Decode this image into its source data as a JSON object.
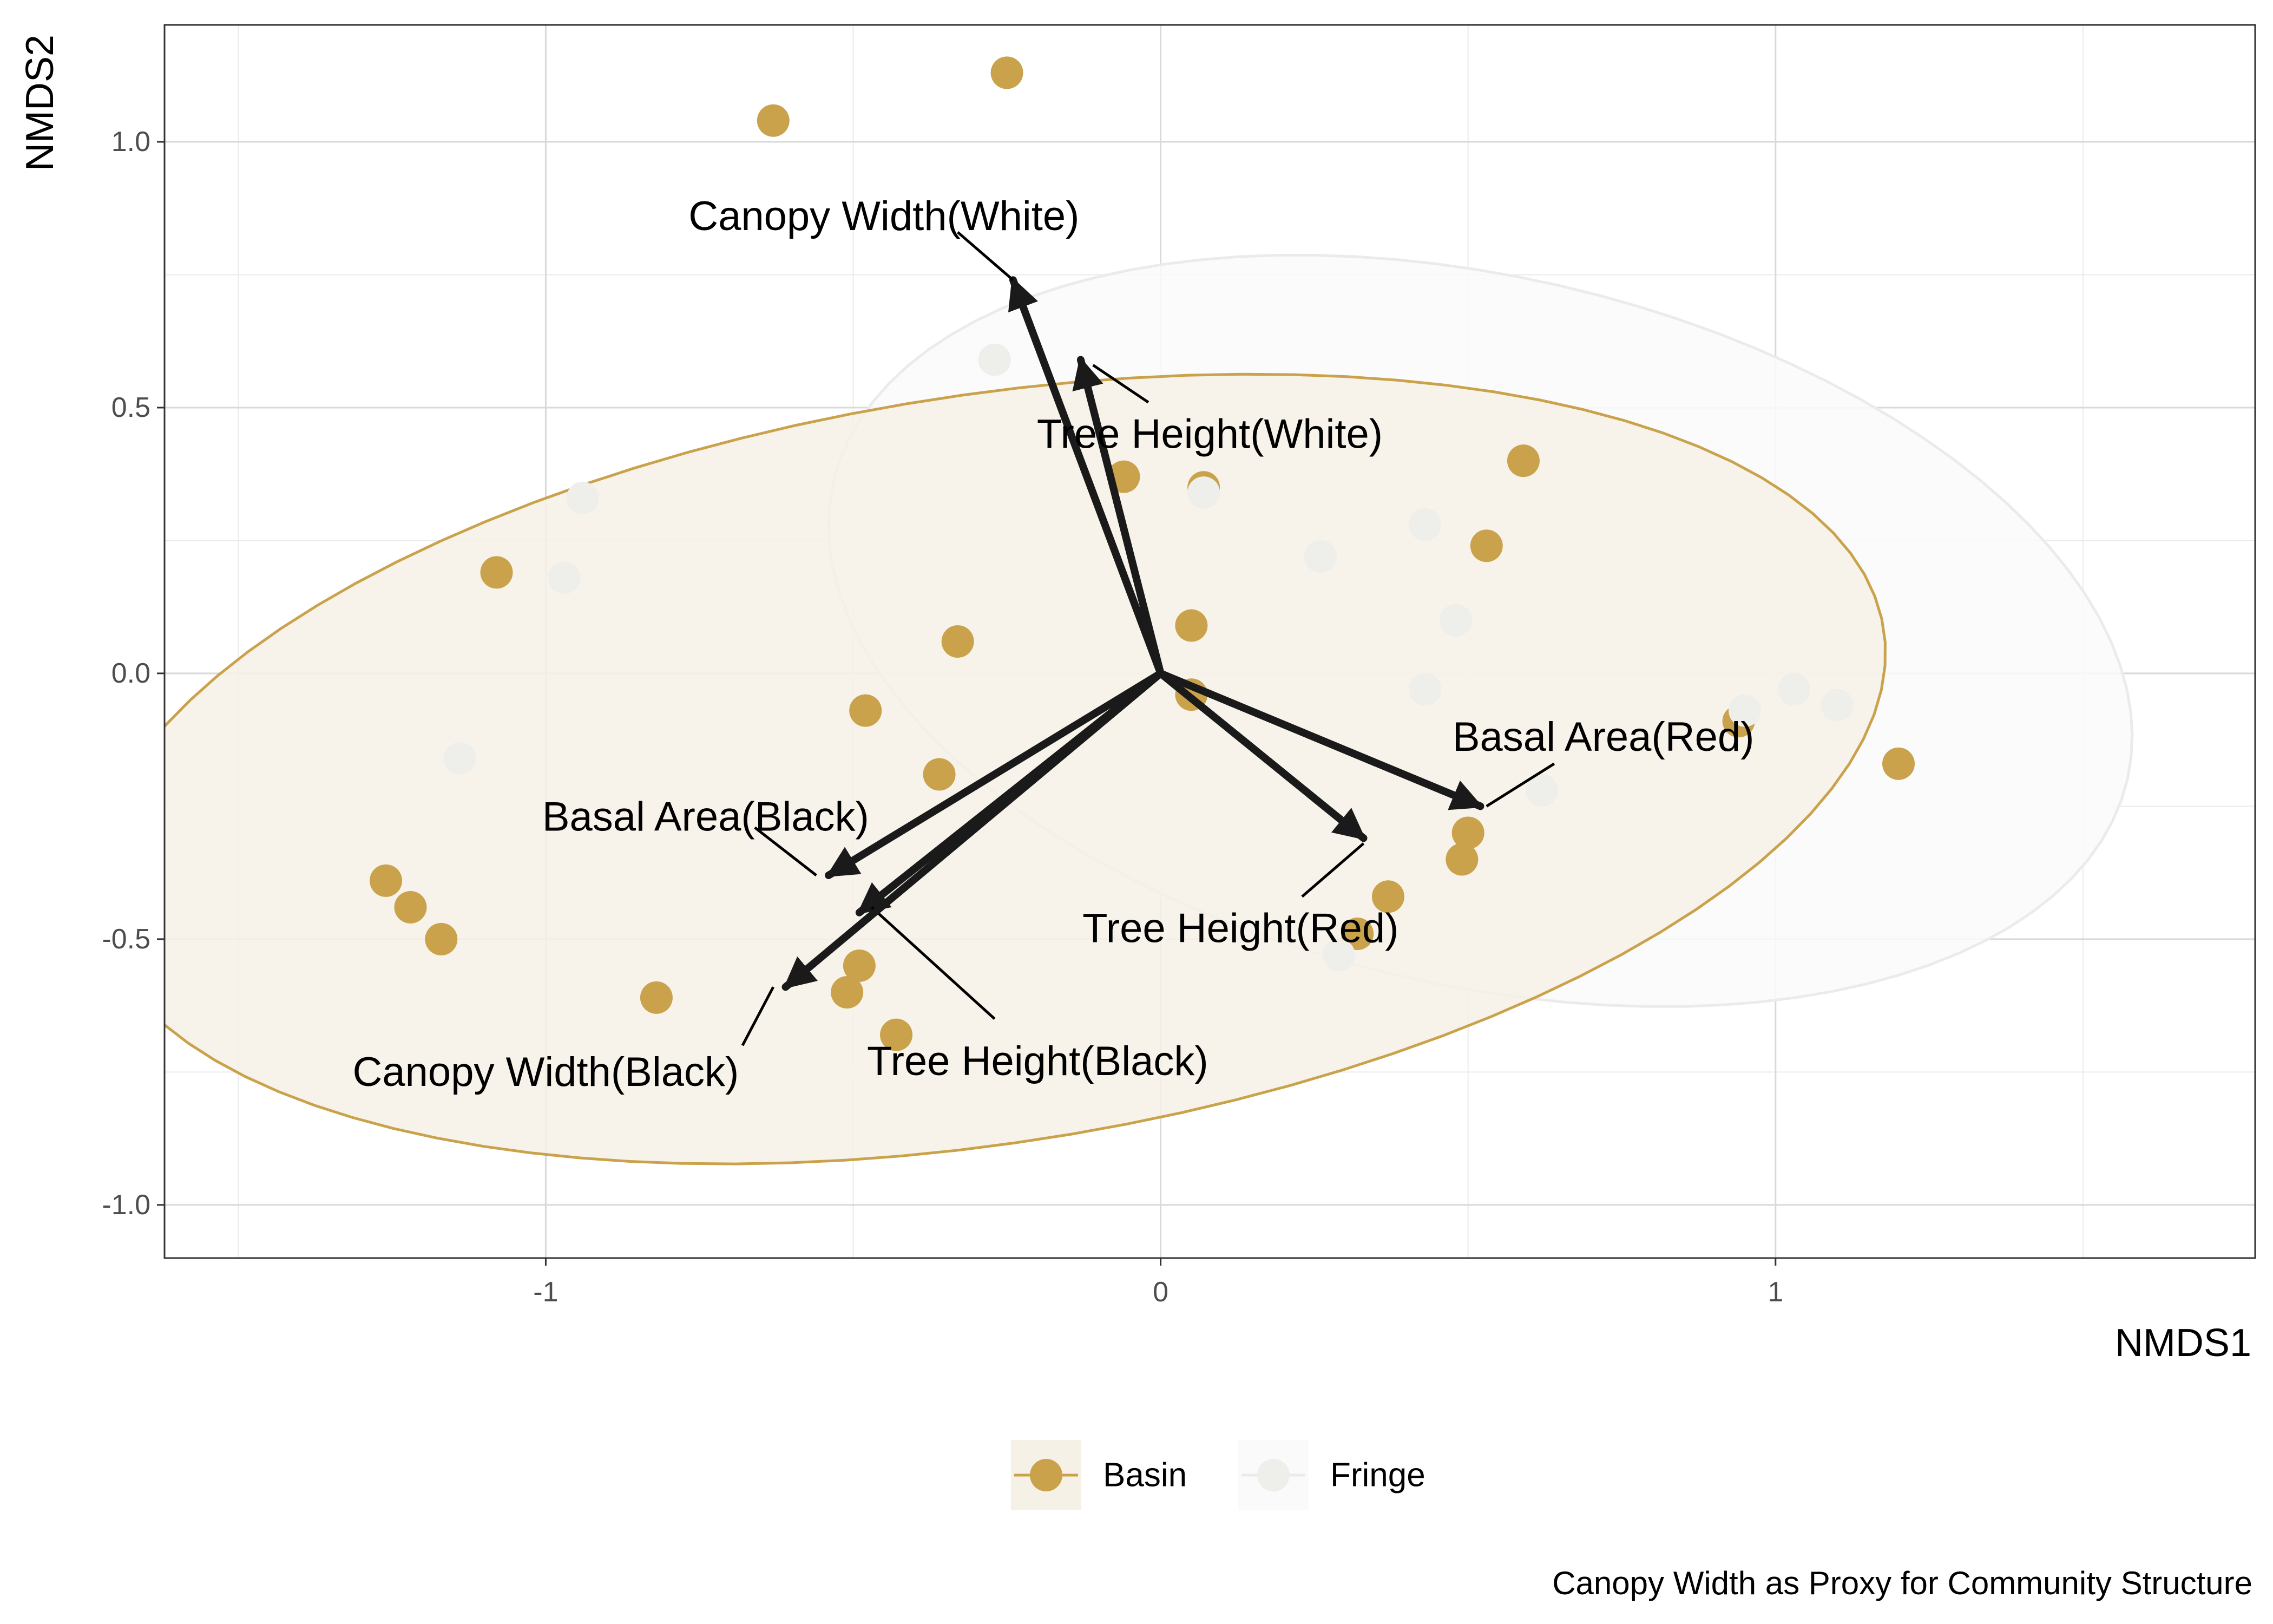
{
  "chart_data": {
    "type": "scatter",
    "xlabel": "NMDS1",
    "ylabel": "NMDS2",
    "caption": "Canopy Width as Proxy for Community Structure",
    "xlim": [
      -1.62,
      1.78
    ],
    "ylim": [
      -1.1,
      1.22
    ],
    "x_ticks": [
      -1,
      0,
      1
    ],
    "x_tick_labels": [
      "-1",
      "0",
      "1"
    ],
    "y_ticks": [
      -1.0,
      -0.5,
      0.0,
      0.5,
      1.0
    ],
    "y_tick_labels": [
      "-1.0",
      "-0.5",
      "0.0",
      "0.5",
      "1.0"
    ],
    "grid": true,
    "legend_position": "bottom",
    "series": [
      {
        "name": "Basin",
        "color": "#C9A24B",
        "ellipse": {
          "cx": -0.28,
          "cy": -0.18,
          "rx": 1.48,
          "ry": 0.7,
          "angle_deg": 11,
          "fill": "#F6F1E6",
          "stroke": "#C9A24B"
        },
        "points": [
          [
            -0.25,
            1.13
          ],
          [
            -0.63,
            1.04
          ],
          [
            -1.08,
            0.19
          ],
          [
            -0.33,
            0.06
          ],
          [
            -0.48,
            -0.07
          ],
          [
            -0.36,
            -0.19
          ],
          [
            -1.26,
            -0.39
          ],
          [
            -1.22,
            -0.44
          ],
          [
            -1.17,
            -0.5
          ],
          [
            -0.82,
            -0.61
          ],
          [
            -0.49,
            -0.55
          ],
          [
            -0.51,
            -0.6
          ],
          [
            -0.43,
            -0.68
          ],
          [
            -0.06,
            0.37
          ],
          [
            0.07,
            0.35
          ],
          [
            0.05,
            0.09
          ],
          [
            0.05,
            -0.04
          ],
          [
            0.59,
            0.4
          ],
          [
            0.53,
            0.24
          ],
          [
            0.37,
            -0.42
          ],
          [
            0.32,
            -0.49
          ],
          [
            0.5,
            -0.3
          ],
          [
            0.49,
            -0.35
          ],
          [
            0.94,
            -0.09
          ],
          [
            1.2,
            -0.17
          ]
        ]
      },
      {
        "name": "Fringe",
        "color": "#EEEEEA",
        "ellipse": {
          "cx": 0.52,
          "cy": 0.08,
          "rx": 1.09,
          "ry": 0.66,
          "angle_deg": -17,
          "fill": "#FAFAFA",
          "stroke": "#EBEBEB"
        },
        "points": [
          [
            -0.27,
            0.59
          ],
          [
            -0.94,
            0.33
          ],
          [
            -0.97,
            0.18
          ],
          [
            -1.14,
            -0.16
          ],
          [
            0.07,
            0.34
          ],
          [
            0.26,
            0.22
          ],
          [
            0.43,
            0.28
          ],
          [
            0.48,
            0.1
          ],
          [
            0.43,
            -0.03
          ],
          [
            0.62,
            -0.22
          ],
          [
            0.95,
            -0.07
          ],
          [
            1.03,
            -0.03
          ],
          [
            1.1,
            -0.06
          ],
          [
            0.29,
            -0.53
          ]
        ]
      }
    ],
    "vectors": [
      {
        "label": "Canopy Width(White)",
        "x": -0.24,
        "y": 0.74,
        "label_x": -0.45,
        "label_y": 0.86,
        "leader": [
          [
            -0.33,
            0.83
          ],
          [
            -0.24,
            0.74
          ]
        ],
        "anchor": "middle"
      },
      {
        "label": "Tree Height(White)",
        "x": -0.13,
        "y": 0.59,
        "label_x": 0.08,
        "label_y": 0.45,
        "leader": [
          [
            -0.02,
            0.51
          ],
          [
            -0.11,
            0.58
          ]
        ],
        "anchor": "middle"
      },
      {
        "label": "Basal Area(Red)",
        "x": 0.52,
        "y": -0.25,
        "label_x": 0.72,
        "label_y": -0.12,
        "leader": [
          [
            0.64,
            -0.17
          ],
          [
            0.53,
            -0.25
          ]
        ],
        "anchor": "middle"
      },
      {
        "label": "Tree Height(Red)",
        "x": 0.33,
        "y": -0.31,
        "label_x": 0.13,
        "label_y": -0.48,
        "leader": [
          [
            0.23,
            -0.42
          ],
          [
            0.33,
            -0.32
          ]
        ],
        "anchor": "middle"
      },
      {
        "label": "Basal Area(Black)",
        "x": -0.54,
        "y": -0.38,
        "label_x": -0.74,
        "label_y": -0.27,
        "leader": [
          [
            -0.66,
            -0.29
          ],
          [
            -0.56,
            -0.38
          ]
        ],
        "anchor": "middle"
      },
      {
        "label": "Tree Height(Black)",
        "x": -0.49,
        "y": -0.45,
        "label_x": -0.2,
        "label_y": -0.73,
        "leader": [
          [
            -0.27,
            -0.65
          ],
          [
            -0.47,
            -0.44
          ]
        ],
        "anchor": "middle"
      },
      {
        "label": "Canopy Width(Black)",
        "x": -0.61,
        "y": -0.59,
        "label_x": -1.0,
        "label_y": -0.75,
        "leader": [
          [
            -0.68,
            -0.7
          ],
          [
            -0.63,
            -0.59
          ]
        ],
        "anchor": "middle"
      }
    ]
  }
}
